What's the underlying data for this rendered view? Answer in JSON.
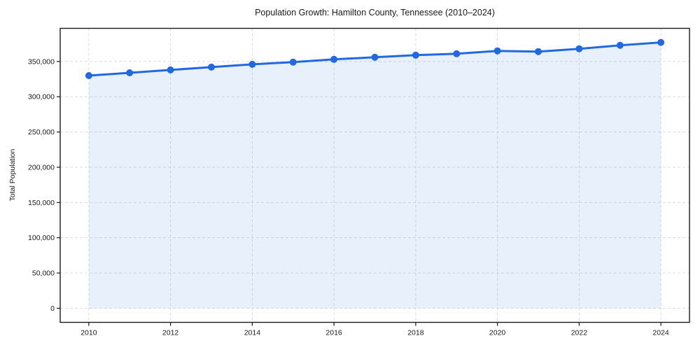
{
  "chart_data": {
    "type": "area",
    "title": "Population Growth: Hamilton County, Tennessee (2010–2024)",
    "xlabel": "",
    "ylabel": "Total Population",
    "x": [
      2010,
      2011,
      2012,
      2013,
      2014,
      2015,
      2016,
      2017,
      2018,
      2019,
      2020,
      2021,
      2022,
      2023,
      2024
    ],
    "series": [
      {
        "name": "Total Population",
        "values": [
          330000,
          334000,
          338000,
          342000,
          346000,
          349000,
          353000,
          356000,
          359000,
          361000,
          365000,
          364000,
          368000,
          373000,
          377000
        ]
      }
    ],
    "xticks": [
      2010,
      2012,
      2014,
      2016,
      2018,
      2020,
      2022,
      2024
    ],
    "yticks": [
      0,
      50000,
      100000,
      150000,
      200000,
      250000,
      300000,
      350000
    ],
    "ytick_labels": [
      "0",
      "50,000",
      "100,000",
      "150,000",
      "200,000",
      "250,000",
      "300,000",
      "350,000"
    ],
    "xlim": [
      2009.3,
      2024.7
    ],
    "ylim": [
      -20000,
      397000
    ],
    "grid": true,
    "legend": false,
    "marker": "circle",
    "style": {
      "line_color": "#2169e0",
      "fill_color": "rgba(33,105,224,0.10)",
      "grid_color": "#dcdcdc",
      "frame_color": "#1a1a1a",
      "text_color": "#1a1a1a",
      "background": "#ffffff"
    }
  }
}
